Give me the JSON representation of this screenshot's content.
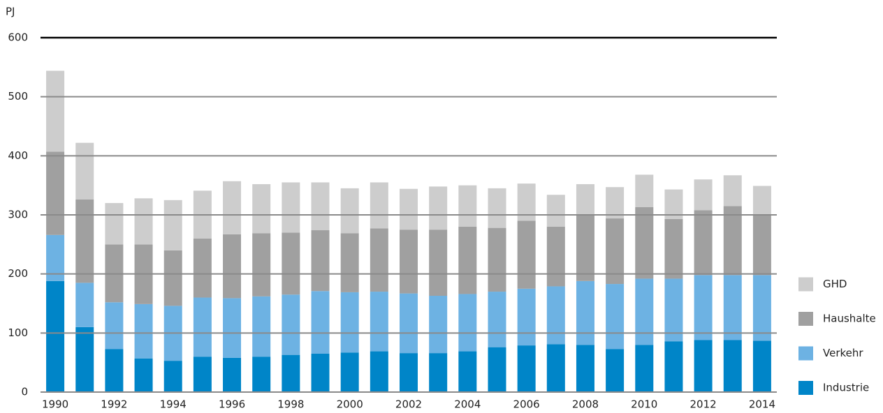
{
  "chart_data": {
    "type": "stacked-bar",
    "y_label": "PJ",
    "categories": [
      "1990",
      null,
      "1992",
      null,
      "1994",
      null,
      "1996",
      null,
      "1998",
      null,
      "2000",
      null,
      "2002",
      null,
      "2004",
      null,
      "2006",
      null,
      "2008",
      null,
      "2010",
      null,
      "2012",
      null,
      "2014"
    ],
    "series": [
      {
        "name": "Industrie",
        "color": "#0085c8",
        "values": [
          188,
          110,
          73,
          57,
          53,
          60,
          58,
          60,
          63,
          65,
          67,
          69,
          66,
          66,
          69,
          76,
          79,
          81,
          80,
          73,
          80,
          86,
          88,
          88,
          87
        ]
      },
      {
        "name": "Verkehr",
        "color": "#6db2e3",
        "values": [
          78,
          75,
          79,
          92,
          93,
          100,
          101,
          102,
          102,
          106,
          102,
          101,
          101,
          97,
          97,
          94,
          96,
          98,
          108,
          110,
          112,
          106,
          110,
          110,
          111
        ]
      },
      {
        "name": "Haushalte",
        "color": "#a0a0a0",
        "values": [
          141,
          141,
          98,
          101,
          94,
          100,
          108,
          107,
          105,
          103,
          100,
          107,
          108,
          112,
          114,
          108,
          115,
          101,
          113,
          111,
          121,
          101,
          110,
          117,
          101
        ]
      },
      {
        "name": "GHD",
        "color": "#cdcdcd",
        "values": [
          137,
          96,
          70,
          78,
          85,
          81,
          90,
          83,
          85,
          81,
          76,
          78,
          69,
          73,
          70,
          67,
          63,
          54,
          51,
          53,
          55,
          50,
          52,
          52,
          50
        ]
      }
    ],
    "ylim": [
      0,
      600
    ],
    "yticks": [
      0,
      100,
      200,
      300,
      400,
      500,
      600
    ],
    "grid": true,
    "legend": "right"
  }
}
